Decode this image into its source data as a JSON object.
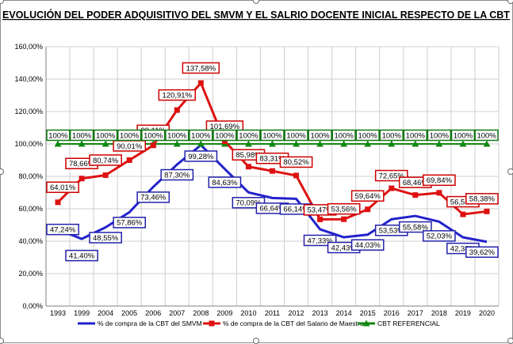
{
  "chart_data": {
    "type": "line",
    "title": "EVOLUCIÓN DEL PODER ADQUISITIVO DEL SMVM Y EL SALRIO DOCENTE INICIAL RESPECTO DE LA CBT",
    "categories": [
      "1993",
      "1999",
      "2004",
      "2005",
      "2006",
      "2007",
      "2008",
      "2009",
      "2010",
      "2011",
      "2012",
      "2013",
      "2014",
      "2015",
      "2016",
      "2017",
      "2018",
      "2019",
      "2020"
    ],
    "ylim": [
      0,
      160
    ],
    "yticks": [
      "0,00%",
      "20,00%",
      "40,00%",
      "60,00%",
      "80,00%",
      "100,00%",
      "120,00%",
      "140,00%",
      "160,00%"
    ],
    "grid": true,
    "legend_position": "bottom",
    "series": [
      {
        "name": "% de compra de la CBT del SMVM",
        "color": "#2222cc",
        "label_border": "#2222aa",
        "marker": "none",
        "values": [
          47.24,
          41.4,
          48.55,
          57.86,
          73.46,
          87.3,
          99.28,
          84.63,
          70.09,
          66.64,
          66.14,
          47.33,
          42.43,
          44.03,
          53.53,
          55.58,
          52.03,
          42.38,
          39.62
        ],
        "labels": [
          "47,24%",
          "41,40%",
          "48,55%",
          "57,86%",
          "73,46%",
          "87,30%",
          "99,28%",
          "84,63%",
          "70,09%",
          "66,64%",
          "66,14%",
          "47,33%",
          "42,43%",
          "44,03%",
          "53,53%",
          "55,58%",
          "52,03%",
          "42,38%",
          "39,62%"
        ]
      },
      {
        "name": "% de compra de la CBT del Salario de Maestro",
        "color": "#dd1111",
        "label_border": "#cc0000",
        "marker": "square",
        "values": [
          64.01,
          78.66,
          80.74,
          90.01,
          99.11,
          120.91,
          137.58,
          101.69,
          85.98,
          83.31,
          80.52,
          53.47,
          53.56,
          59.64,
          72.65,
          68.46,
          69.84,
          56.55,
          58.38
        ],
        "labels": [
          "64,01%",
          "78,66%",
          "80,74%",
          "90,01%",
          "99,11%",
          "120,91%",
          "137,58%",
          "101,69%",
          "85,98%",
          "83,31%",
          "80,52%",
          "53,47%",
          "53,56%",
          "59,64%",
          "72,65%",
          "68,46%",
          "69,84%",
          "56,55%",
          "58,38%"
        ]
      },
      {
        "name": "CBT REFERENCIAL",
        "color": "#118811",
        "label_border": "#117711",
        "marker": "triangle",
        "values": [
          100,
          100,
          100,
          100,
          100,
          100,
          100,
          100,
          100,
          100,
          100,
          100,
          100,
          100,
          100,
          100,
          100,
          100,
          100
        ],
        "labels": [
          "100%",
          "100%",
          "100%",
          "100%",
          "100%",
          "100%",
          "100%",
          "100%",
          "100%",
          "100%",
          "100%",
          "100%",
          "100%",
          "100%",
          "100%",
          "100%",
          "100%",
          "100%",
          "100%"
        ]
      }
    ]
  }
}
